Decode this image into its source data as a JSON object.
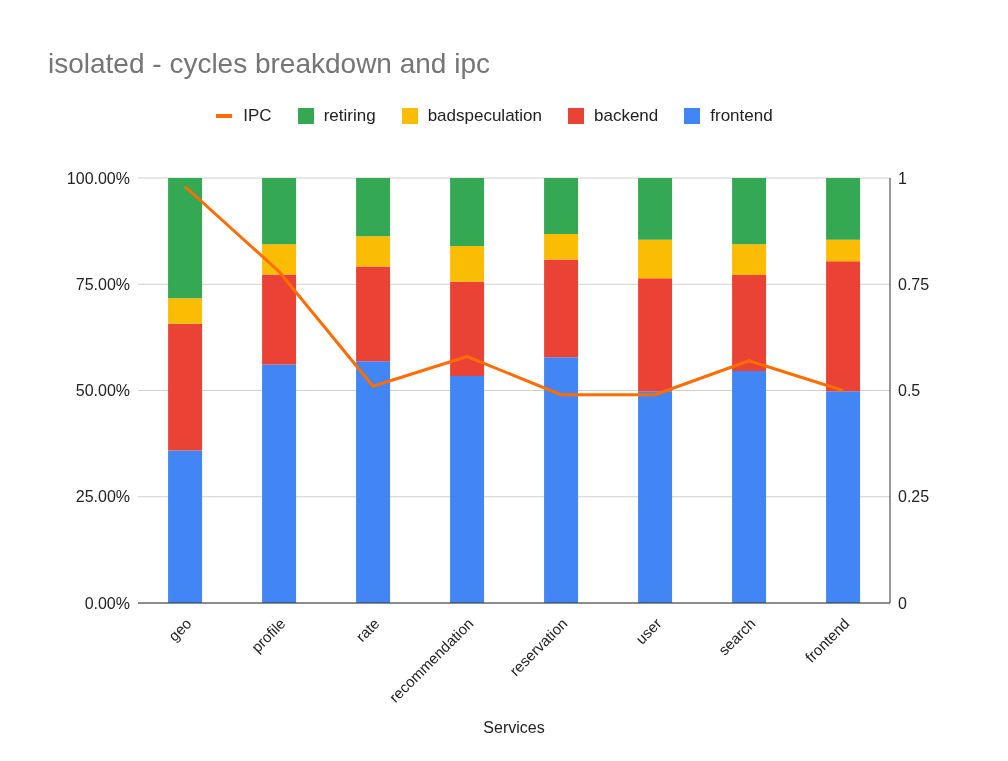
{
  "chart_data": {
    "type": "bar",
    "stacked": true,
    "title": "isolated - cycles breakdown and ipc",
    "xlabel": "Services",
    "categories": [
      "geo",
      "profile",
      "rate",
      "recommendation",
      "reservation",
      "user",
      "search",
      "frontend"
    ],
    "series": [
      {
        "name": "frontend",
        "color": "#4285f4",
        "values": [
          35.9,
          56.1,
          56.9,
          53.4,
          57.8,
          49.8,
          54.6,
          49.8
        ]
      },
      {
        "name": "backend",
        "color": "#ea4335",
        "values": [
          29.8,
          21.2,
          22.3,
          22.2,
          23.0,
          26.6,
          22.6,
          30.6
        ]
      },
      {
        "name": "badspeculation",
        "color": "#fbbc04",
        "values": [
          6.0,
          7.1,
          7.1,
          8.4,
          6.0,
          9.1,
          7.2,
          5.1
        ]
      },
      {
        "name": "retiring",
        "color": "#34a853",
        "values": [
          28.3,
          15.6,
          13.7,
          16.0,
          13.2,
          14.5,
          15.6,
          14.5
        ]
      },
      {
        "name": "IPC",
        "type": "line",
        "axis": "y2",
        "color": "#ff6d01",
        "values": [
          0.98,
          0.78,
          0.51,
          0.58,
          0.49,
          0.49,
          0.57,
          0.5
        ]
      }
    ],
    "ylim": [
      0,
      100
    ],
    "yticks": [
      {
        "value": 0,
        "label": "0.00%"
      },
      {
        "value": 25,
        "label": "25.00%"
      },
      {
        "value": 50,
        "label": "50.00%"
      },
      {
        "value": 75,
        "label": "75.00%"
      },
      {
        "value": 100,
        "label": "100.00%"
      }
    ],
    "y2lim": [
      0,
      1
    ],
    "y2ticks": [
      0,
      0.25,
      0.5,
      0.75,
      1
    ],
    "grid": "y",
    "legend": "top",
    "marker": "none"
  }
}
